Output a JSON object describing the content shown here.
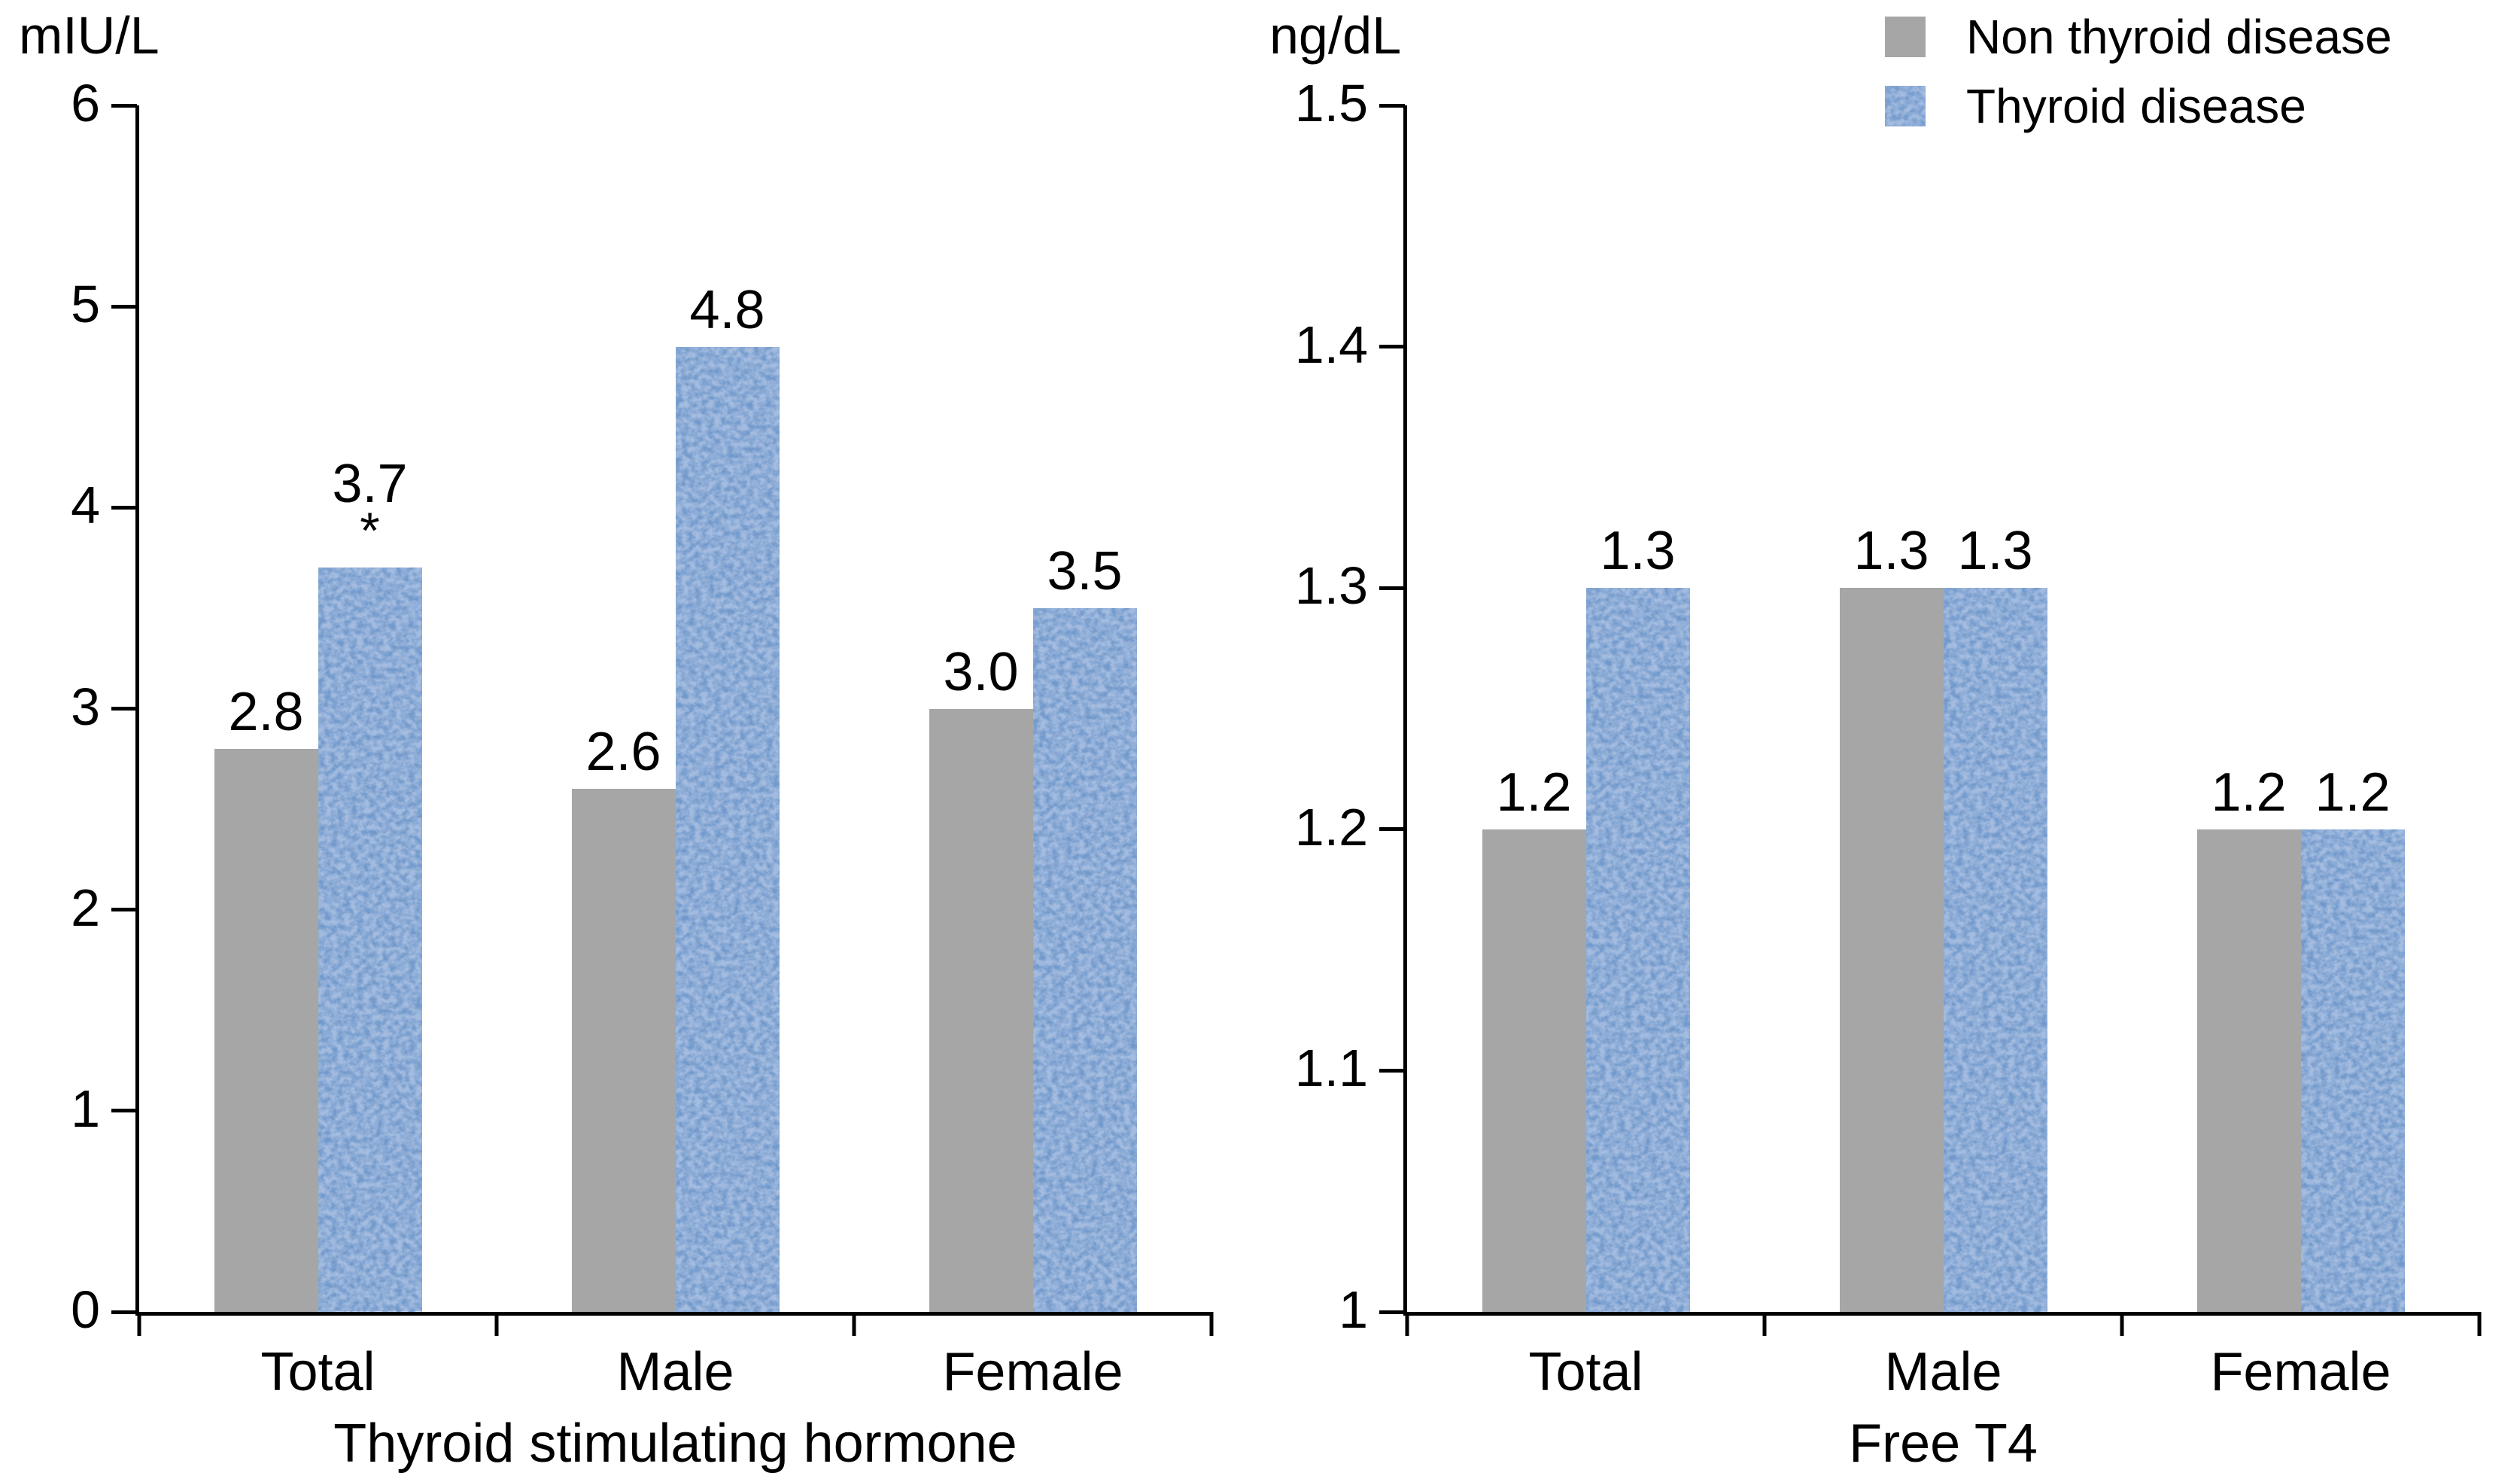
{
  "colors": {
    "non_thyroid_gray": "#A6A6A6",
    "thyroid_blue_base": "#A4BCE0",
    "thyroid_blue_dark": "#2A5198",
    "axis_black": "#000000"
  },
  "legend": {
    "items": [
      {
        "label": "Non thyroid disease",
        "swatch": "solid-gray"
      },
      {
        "label": "Thyroid disease",
        "swatch": "blue-texture"
      }
    ]
  },
  "chart_data": [
    {
      "type": "bar",
      "panel": "left",
      "unit": "mIU/L",
      "xlabel": "Thyroid stimulating hormone",
      "categories": [
        "Total",
        "Male",
        "Female"
      ],
      "series": [
        {
          "name": "Non thyroid disease",
          "values": [
            2.8,
            2.6,
            3.0
          ],
          "value_labels": [
            "2.8",
            "2.6",
            "3.0"
          ],
          "annotations": [
            "",
            "",
            ""
          ]
        },
        {
          "name": "Thyroid disease",
          "values": [
            3.7,
            4.8,
            3.5
          ],
          "value_labels": [
            "3.7",
            "4.8",
            "3.5"
          ],
          "annotations": [
            "*",
            "",
            ""
          ]
        }
      ],
      "ylim": [
        0,
        6
      ],
      "yticks": [
        {
          "value": 0,
          "label": "0"
        },
        {
          "value": 1,
          "label": "1"
        },
        {
          "value": 2,
          "label": "2"
        },
        {
          "value": 3,
          "label": "3"
        },
        {
          "value": 4,
          "label": "4"
        },
        {
          "value": 5,
          "label": "5"
        },
        {
          "value": 6,
          "label": "6"
        }
      ],
      "grid": false,
      "legend_position": "top-right-shared"
    },
    {
      "type": "bar",
      "panel": "right",
      "unit": "ng/dL",
      "xlabel": "Free T4",
      "categories": [
        "Total",
        "Male",
        "Female"
      ],
      "series": [
        {
          "name": "Non thyroid disease",
          "values": [
            1.2,
            1.3,
            1.2
          ],
          "value_labels": [
            "1.2",
            "1.3",
            "1.2"
          ],
          "annotations": [
            "",
            "",
            ""
          ]
        },
        {
          "name": "Thyroid disease",
          "values": [
            1.3,
            1.3,
            1.2
          ],
          "value_labels": [
            "1.3",
            "1.3",
            "1.2"
          ],
          "annotations": [
            "",
            "",
            ""
          ]
        }
      ],
      "ylim": [
        1,
        1.5
      ],
      "yticks": [
        {
          "value": 1.0,
          "label": "1"
        },
        {
          "value": 1.1,
          "label": "1.1"
        },
        {
          "value": 1.2,
          "label": "1.2"
        },
        {
          "value": 1.3,
          "label": "1.3"
        },
        {
          "value": 1.4,
          "label": "1.4"
        },
        {
          "value": 1.5,
          "label": "1.5"
        }
      ],
      "grid": false,
      "legend_position": "top-right-shared"
    }
  ]
}
